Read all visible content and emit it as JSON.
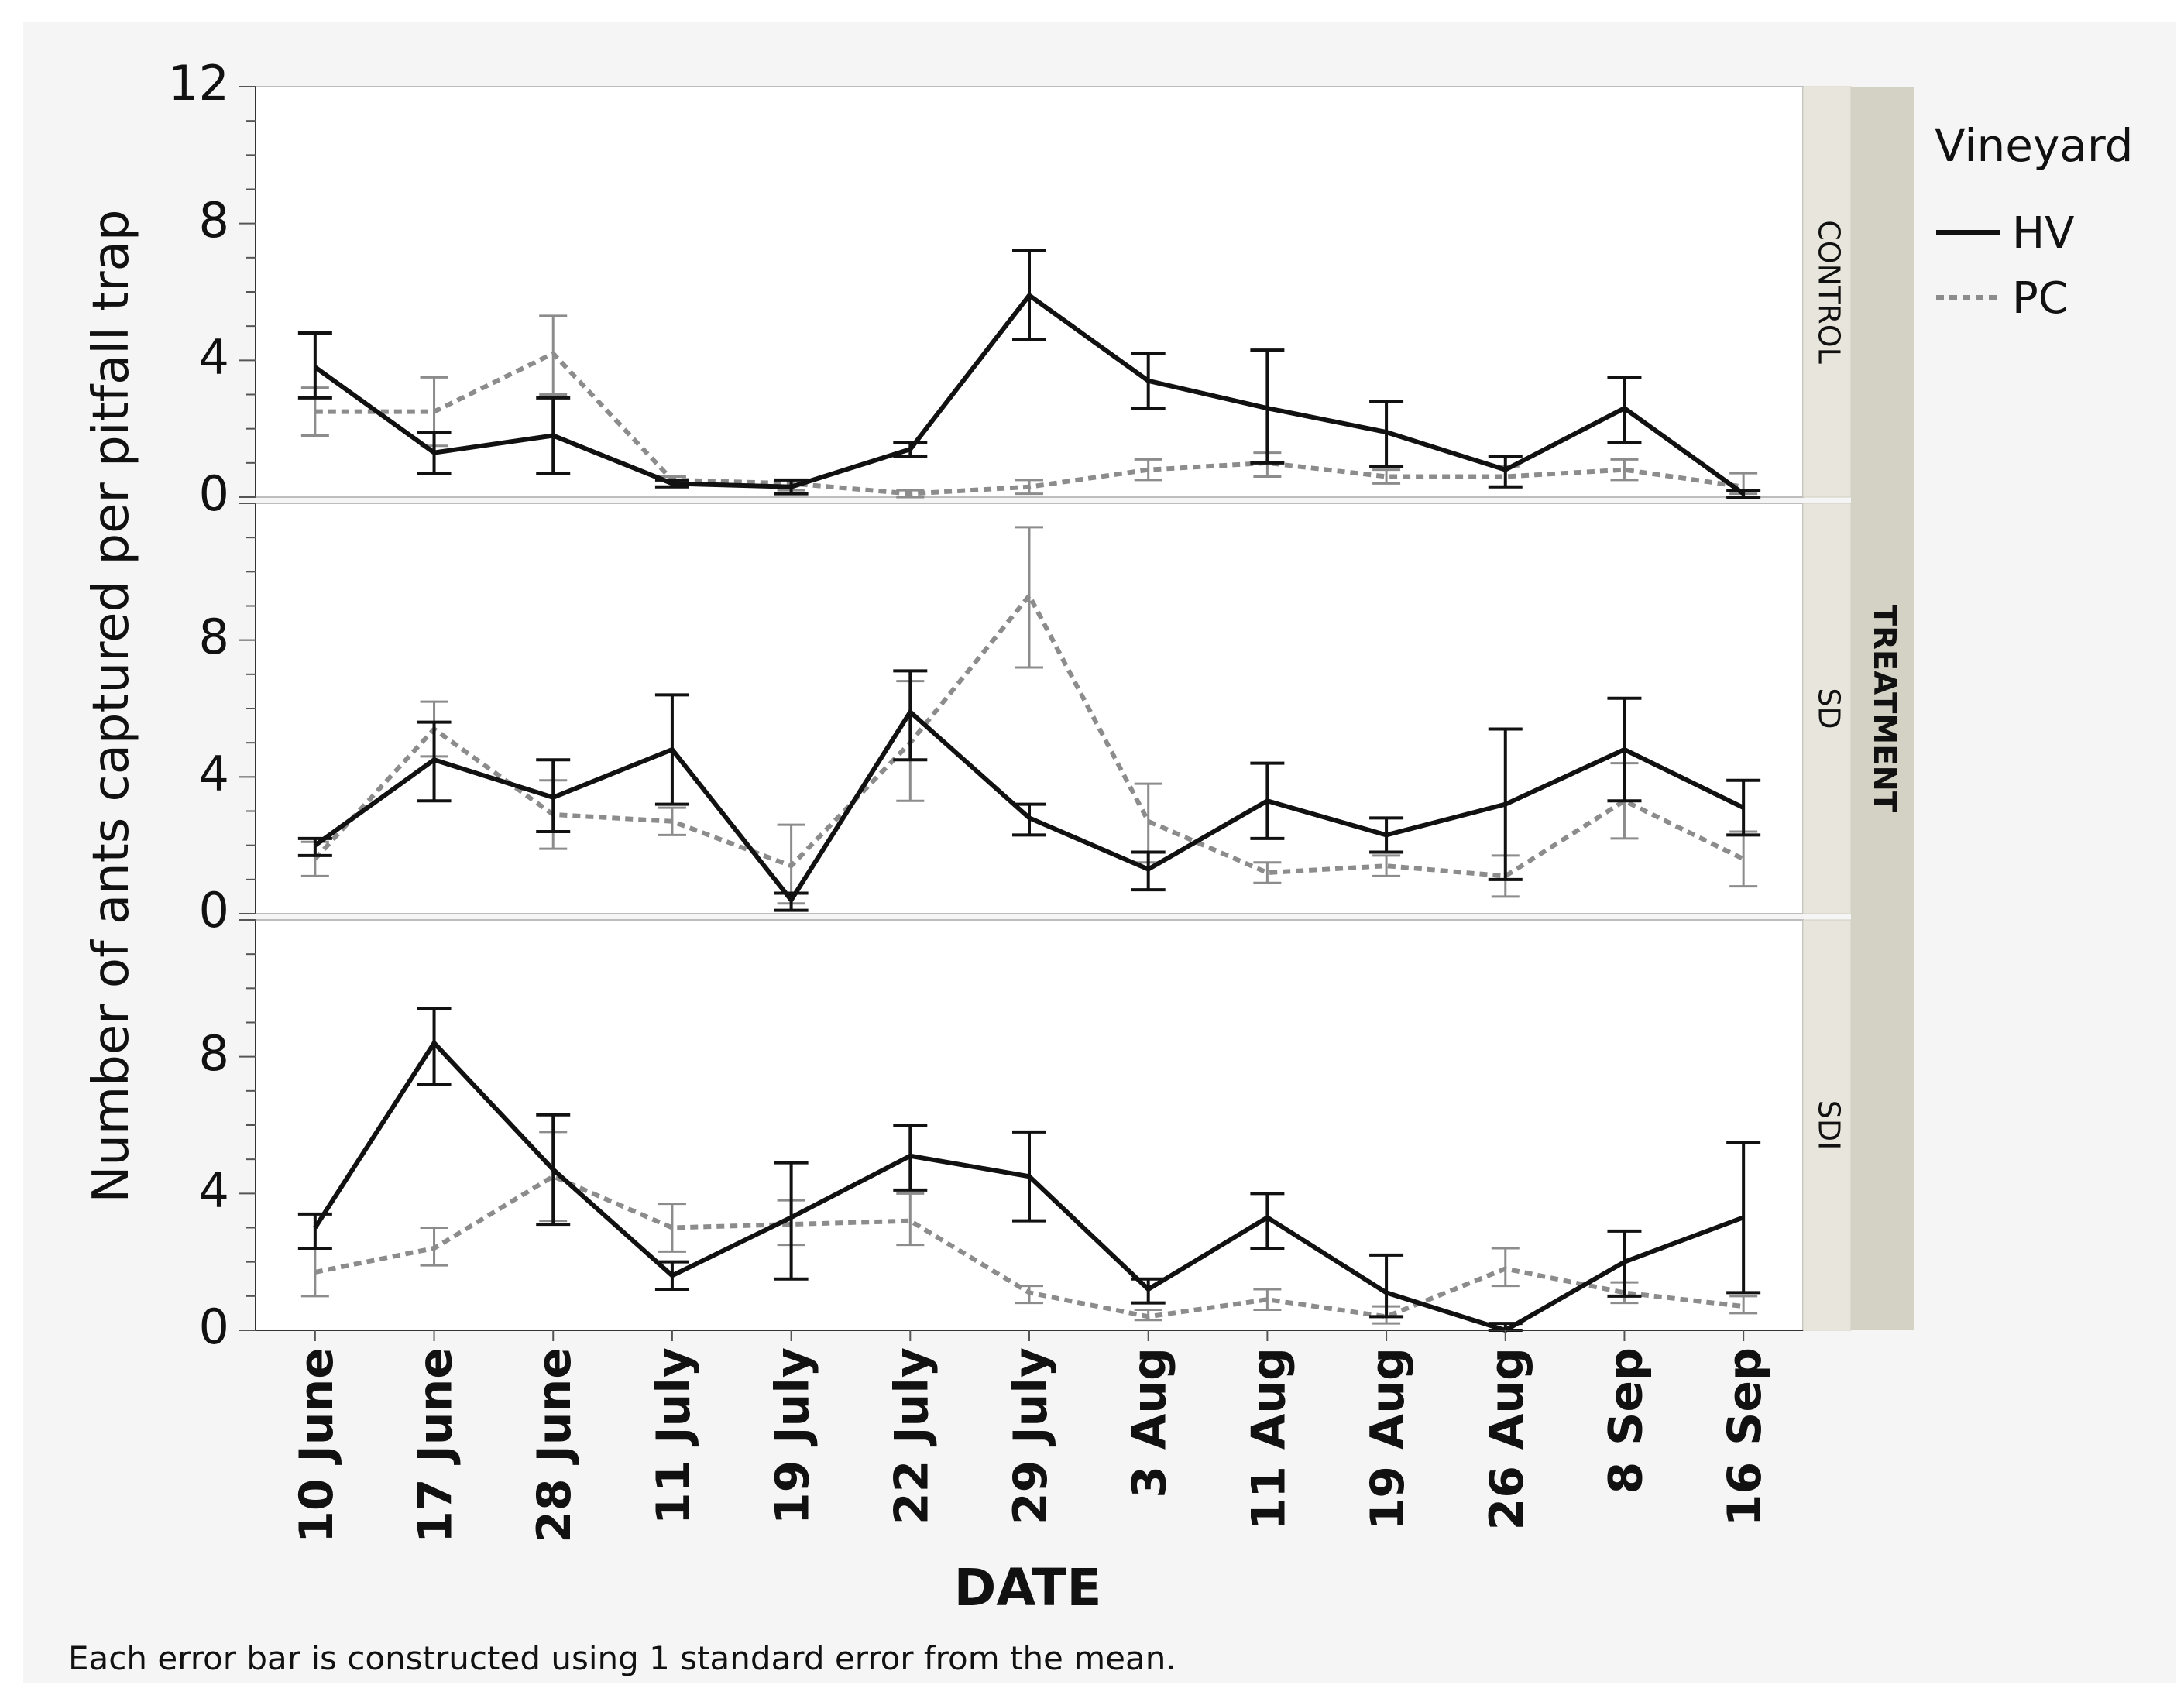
{
  "chart_data": {
    "type": "line",
    "ylabel": "Number of ants captured per pitfall trap",
    "xlabel": "DATE",
    "categories": [
      "10 June",
      "17 June",
      "28 June",
      "11 July",
      "19 July",
      "22 July",
      "29 July",
      "3 Aug",
      "11 Aug",
      "19 Aug",
      "26 Aug",
      "8 Sep",
      "16 Sep"
    ],
    "ylim": [
      0,
      12
    ],
    "yticks": [
      0,
      4,
      8,
      12
    ],
    "panel_group_label": "TREATMENT",
    "legend": {
      "title": "Vineyard",
      "placement": "right"
    },
    "series_styles": [
      {
        "name": "HV",
        "color": "#111111",
        "dashed": false
      },
      {
        "name": "PC",
        "color": "#8c8c8c",
        "dashed": true
      }
    ],
    "panels": [
      {
        "label": "CONTROL",
        "series": [
          {
            "name": "HV",
            "values": [
              3.8,
              1.3,
              1.8,
              0.4,
              0.3,
              1.4,
              5.9,
              3.4,
              2.6,
              1.9,
              0.8,
              2.6,
              0.1
            ],
            "err_low": [
              2.9,
              0.7,
              0.7,
              0.3,
              0.1,
              1.2,
              4.6,
              2.6,
              1.0,
              0.9,
              0.3,
              1.6,
              0.0
            ],
            "err_high": [
              4.8,
              1.9,
              2.9,
              0.5,
              0.5,
              1.6,
              7.2,
              4.2,
              4.3,
              2.8,
              1.2,
              3.5,
              0.2
            ]
          },
          {
            "name": "PC",
            "values": [
              2.5,
              2.5,
              4.2,
              0.5,
              0.4,
              0.1,
              0.3,
              0.8,
              1.0,
              0.6,
              0.6,
              0.8,
              0.3
            ],
            "err_low": [
              1.8,
              1.5,
              3.0,
              0.3,
              0.2,
              0.0,
              0.1,
              0.5,
              0.6,
              0.4,
              0.3,
              0.5,
              0.1
            ],
            "err_high": [
              3.2,
              3.5,
              5.3,
              0.6,
              0.5,
              0.2,
              0.5,
              1.1,
              1.3,
              0.8,
              0.9,
              1.1,
              0.7
            ]
          }
        ]
      },
      {
        "label": "SD",
        "series": [
          {
            "name": "HV",
            "values": [
              2.0,
              4.5,
              3.4,
              4.8,
              0.4,
              5.9,
              2.8,
              1.3,
              3.3,
              2.3,
              3.2,
              4.8,
              3.1
            ],
            "err_low": [
              1.7,
              3.3,
              2.4,
              3.2,
              0.1,
              4.5,
              2.3,
              0.7,
              2.2,
              1.8,
              1.0,
              3.3,
              2.3
            ],
            "err_high": [
              2.2,
              5.6,
              4.5,
              6.4,
              0.6,
              7.1,
              3.2,
              1.8,
              4.4,
              2.8,
              5.4,
              6.3,
              3.9
            ]
          },
          {
            "name": "PC",
            "values": [
              1.6,
              5.4,
              2.9,
              2.7,
              1.4,
              5.0,
              9.3,
              2.7,
              1.2,
              1.4,
              1.1,
              3.3,
              1.6
            ],
            "err_low": [
              1.1,
              4.6,
              1.9,
              2.3,
              0.3,
              3.3,
              7.2,
              1.5,
              0.9,
              1.1,
              0.5,
              2.2,
              0.8
            ],
            "err_high": [
              2.1,
              6.2,
              3.9,
              3.1,
              2.6,
              6.8,
              11.3,
              3.8,
              1.5,
              1.7,
              1.7,
              4.4,
              2.4
            ]
          }
        ]
      },
      {
        "label": "SDI",
        "series": [
          {
            "name": "HV",
            "values": [
              3.0,
              8.4,
              4.7,
              1.6,
              3.3,
              5.1,
              4.5,
              1.2,
              3.3,
              1.1,
              0.0,
              2.0,
              3.3
            ],
            "err_low": [
              2.4,
              7.2,
              3.1,
              1.2,
              1.5,
              4.1,
              3.2,
              0.8,
              2.4,
              0.4,
              0.0,
              1.0,
              1.1
            ],
            "err_high": [
              3.4,
              9.4,
              6.3,
              2.0,
              4.9,
              6.0,
              5.8,
              1.5,
              4.0,
              2.2,
              0.2,
              2.9,
              5.5
            ]
          },
          {
            "name": "PC",
            "values": [
              1.7,
              2.4,
              4.5,
              3.0,
              3.1,
              3.2,
              1.1,
              0.4,
              0.9,
              0.4,
              1.8,
              1.1,
              0.7
            ],
            "err_low": [
              1.0,
              1.9,
              3.2,
              2.3,
              2.5,
              2.5,
              0.8,
              0.3,
              0.6,
              0.2,
              1.3,
              0.8,
              0.5
            ],
            "err_high": [
              2.4,
              3.0,
              5.8,
              3.7,
              3.8,
              4.0,
              1.3,
              0.6,
              1.2,
              0.7,
              2.4,
              1.4,
              1.0
            ]
          }
        ]
      }
    ],
    "footnote": "Each error bar is constructed using 1 standard error from the mean."
  }
}
